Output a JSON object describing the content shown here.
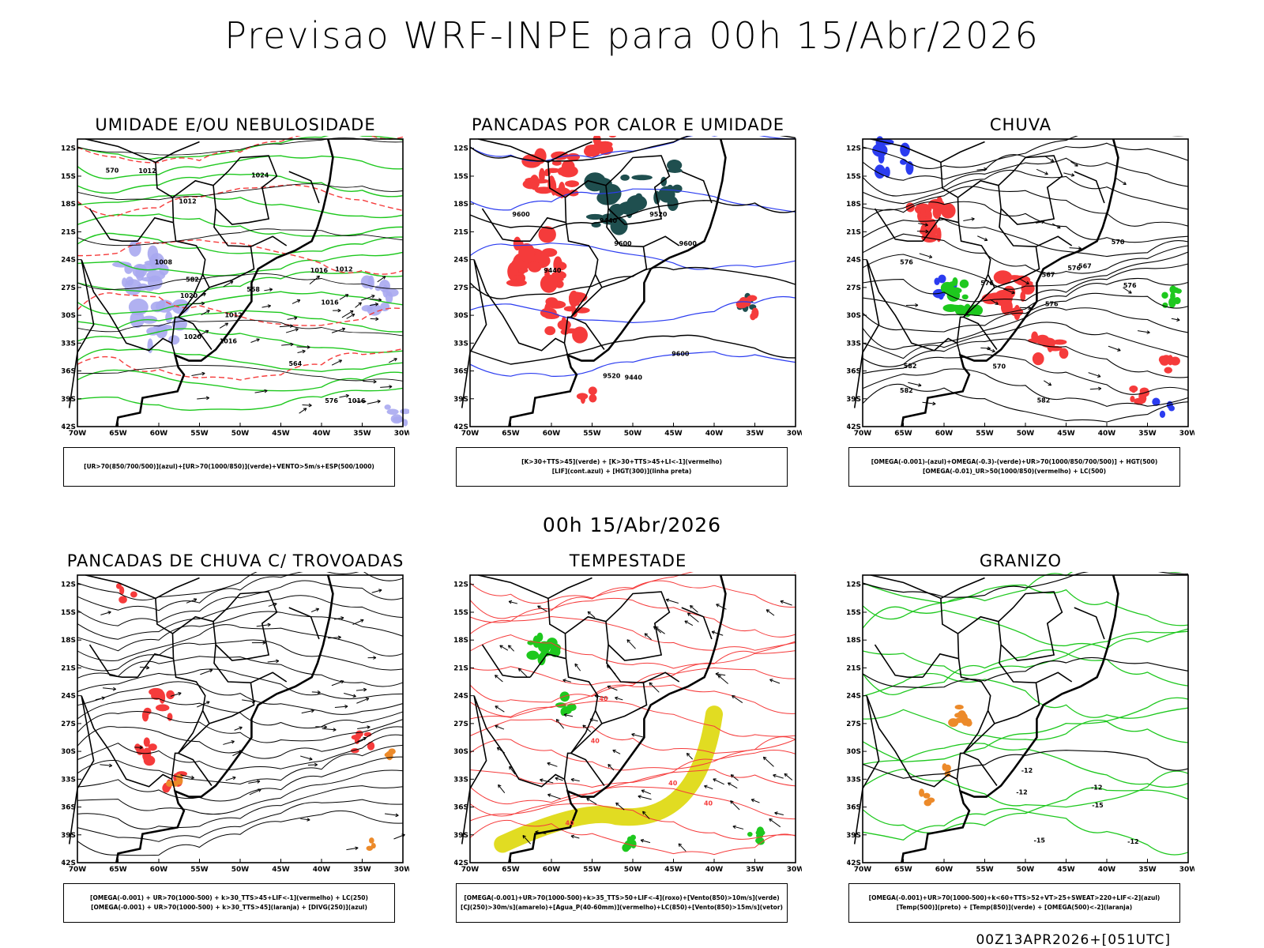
{
  "page": {
    "title": "Previsao WRF-INPE  para 00h 15/Abr/2026",
    "mid_title": "00h 15/Abr/2026",
    "footer": "00Z13APR2026+[051UTC]"
  },
  "axes": {
    "lat_labels": [
      "12S",
      "15S",
      "18S",
      "21S",
      "24S",
      "27S",
      "30S",
      "33S",
      "36S",
      "39S",
      "42S"
    ],
    "lon_labels": [
      "70W",
      "65W",
      "60W",
      "55W",
      "50W",
      "45W",
      "40W",
      "35W",
      "30W"
    ]
  },
  "colors": {
    "red": "#f53b3b",
    "green": "#1ec81e",
    "blue": "#2b3cf0",
    "lavender": "#a9a9f0",
    "darkteal": "#1f4f4f",
    "yellow": "#e1dc22",
    "orange": "#ec8a2a",
    "black": "#000000"
  },
  "panels": [
    {
      "id": "umidade",
      "title": "UMIDADE E/OU NEBULOSIDADE",
      "legend": [
        "[UR>70(850/700/500)](azul)+[UR>70(1000/850)](verde)+VENTO>5m/s+ESP(500/1000)"
      ],
      "labels": [
        "1012",
        "1008",
        "1012",
        "1016",
        "1016",
        "1012",
        "1016",
        "1020",
        "1020",
        "1016",
        "1012",
        "1024",
        "570",
        "576",
        "582",
        "564",
        "558"
      ]
    },
    {
      "id": "pancadas_calor",
      "title": "PANCADAS POR CALOR E UMIDADE",
      "legend": [
        "[K>30+TTS>45](verde) + [K>30+TTS>45+LI<-1](vermelho)",
        "[LIF](cont.azul) + [HGT(300)](linha preta)"
      ],
      "labels": [
        "9600",
        "9600",
        "9600",
        "9600",
        "9520",
        "9440",
        "9440",
        "9520",
        "9440"
      ]
    },
    {
      "id": "chuva",
      "title": "CHUVA",
      "legend": [
        "[OMEGA(-0.001)-(azul)+OMEGA(-0.3)-(verde)+UR>70(1000/850/700/500)] + HGT(500)",
        "[OMEGA(-0.01)_UR>50(1000/850)(vermelho) + LC(500)"
      ],
      "labels": [
        "582",
        "576",
        "576",
        "570",
        "582",
        "567",
        "576",
        "582",
        "576",
        "570",
        "567",
        "576"
      ]
    },
    {
      "id": "trovoadas",
      "title": "PANCADAS DE CHUVA C/ TROVOADAS",
      "legend": [
        "[OMEGA(-0.001) + UR>70(1000-500) + k>30_TTS>45+LIF<-1](vermelho) + LC(250)",
        "[OMEGA(-0.001) + UR>70(1000-500) + k>30_TTS>45](laranja) + [DIVG(250)](azul)"
      ],
      "labels": []
    },
    {
      "id": "tempestade",
      "title": "TEMPESTADE",
      "legend": [
        "[OMEGA(-0.001)+UR>70(1000-500)+k>35_TTS>50+LIF<-4](roxo)+[Vento(850)>10m/s](verde)",
        "[CJ(250)>30m/s](amarelo)+[Agua_P(40-60mm)](vermelho)+LC(850)+[Vento(850)>15m/s](vetor)"
      ],
      "labels": [
        "40",
        "40",
        "40",
        "40",
        "40"
      ]
    },
    {
      "id": "granizo",
      "title": "GRANIZO",
      "legend": [
        "[OMEGA(-0.001)+UR>70(1000-500)+k<60+TTS>52+VT>25+SWEAT>220+LIF<-2](azul)",
        "[Temp(500)](preto) + [Temp(850)](verde) + [OMEGA(500)<-2](laranja)"
      ],
      "labels": [
        "-12",
        "-12",
        "-15",
        "-15",
        "-12",
        "-12"
      ]
    }
  ]
}
